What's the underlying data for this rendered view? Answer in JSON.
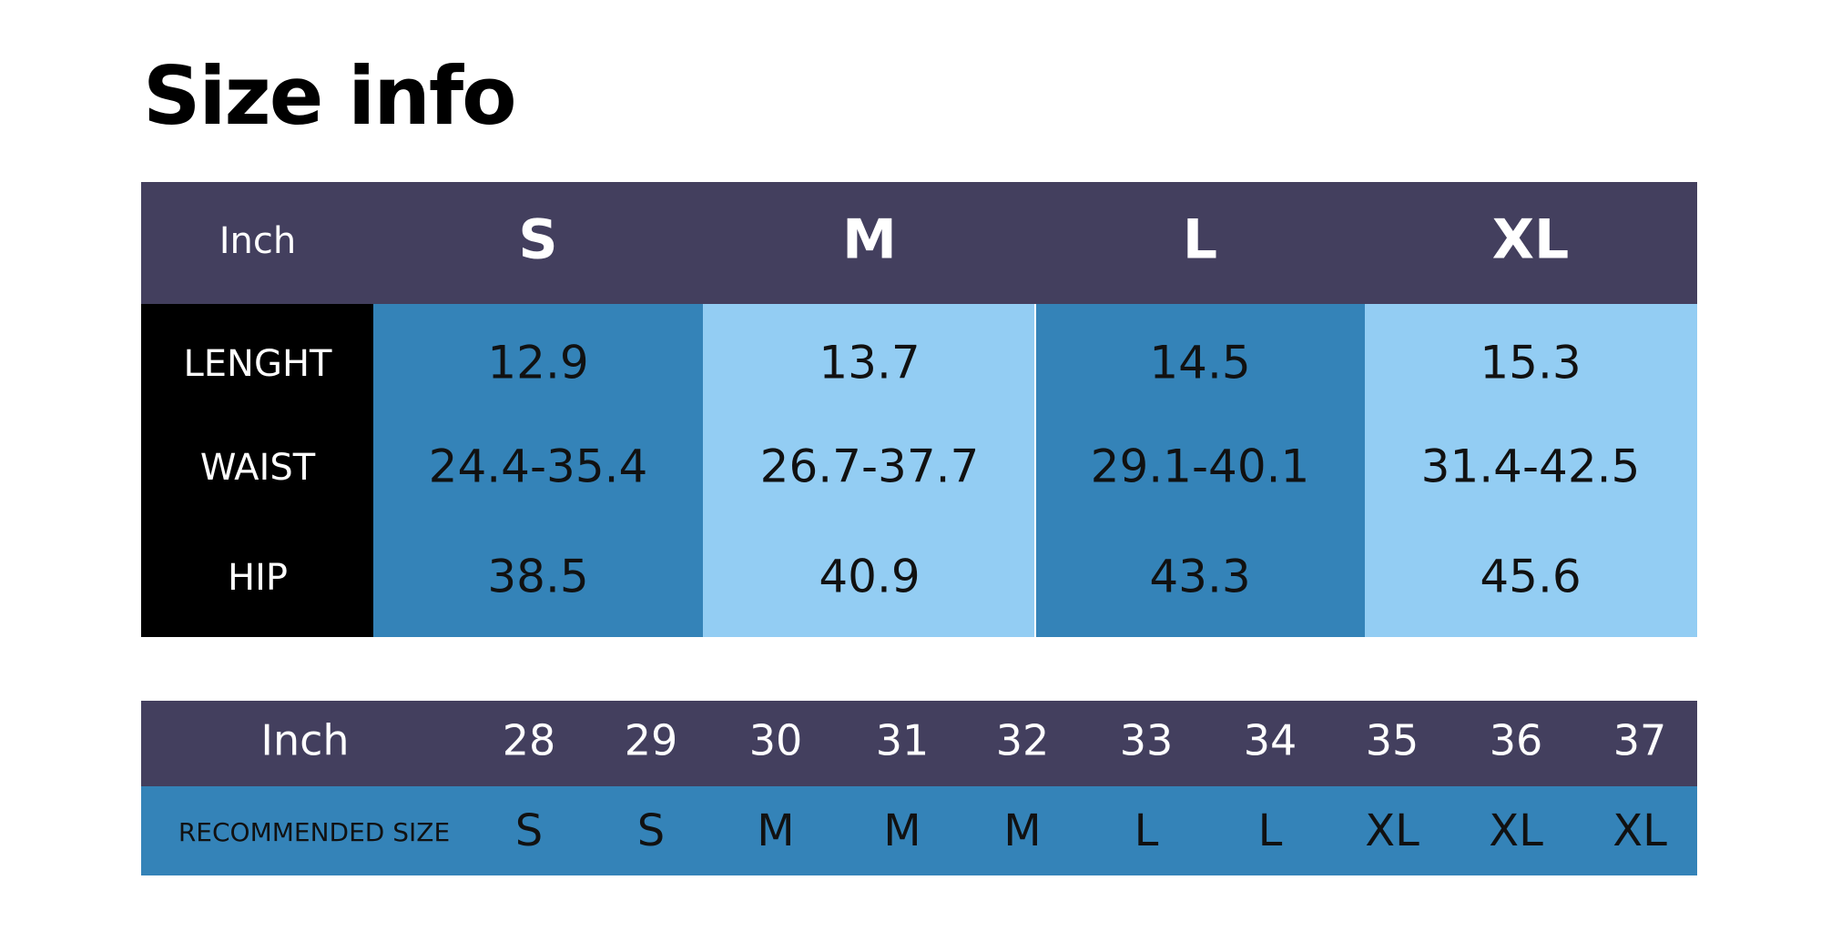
{
  "title": "Size info",
  "size_table": {
    "header": [
      "Inch",
      "S",
      "M",
      "L",
      "XL"
    ],
    "rows": [
      [
        "LENGHT",
        "12.9",
        "13.7",
        "14.5",
        "15.3"
      ],
      [
        "WAIST",
        "24.4-35.4",
        "26.7-37.7",
        "29.1-40.1",
        "31.4-42.5"
      ],
      [
        "HIP",
        "38.5",
        "40.9",
        "43.3",
        "45.6"
      ]
    ]
  },
  "recommend_table": {
    "header": [
      "Inch",
      "28",
      "29",
      "30",
      "31",
      "32",
      "33",
      "34",
      "35",
      "36",
      "37"
    ],
    "rows": [
      [
        "RECOMMENDED SIZE",
        "S",
        "S",
        "M",
        "M",
        "M",
        "L",
        "L",
        "XL",
        "XL",
        "XL"
      ]
    ]
  }
}
